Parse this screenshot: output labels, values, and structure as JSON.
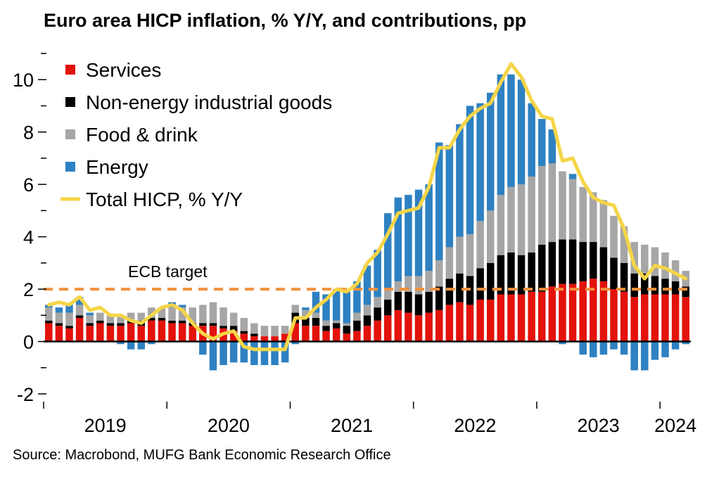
{
  "chart_data": {
    "type": "bar",
    "title": "Euro area HICP inflation, % Y/Y, and contributions, pp",
    "source": "Source: Macrobond, MUFG Bank Economic Research Office",
    "ylim": [
      -2,
      11
    ],
    "yticks": [
      -2,
      0,
      2,
      4,
      6,
      8,
      10
    ],
    "grid": false,
    "legend_position": "top-left",
    "x": [
      "2019-01",
      "2019-02",
      "2019-03",
      "2019-04",
      "2019-05",
      "2019-06",
      "2019-07",
      "2019-08",
      "2019-09",
      "2019-10",
      "2019-11",
      "2019-12",
      "2020-01",
      "2020-02",
      "2020-03",
      "2020-04",
      "2020-05",
      "2020-06",
      "2020-07",
      "2020-08",
      "2020-09",
      "2020-10",
      "2020-11",
      "2020-12",
      "2021-01",
      "2021-02",
      "2021-03",
      "2021-04",
      "2021-05",
      "2021-06",
      "2021-07",
      "2021-08",
      "2021-09",
      "2021-10",
      "2021-11",
      "2021-12",
      "2022-01",
      "2022-02",
      "2022-03",
      "2022-04",
      "2022-05",
      "2022-06",
      "2022-07",
      "2022-08",
      "2022-09",
      "2022-10",
      "2022-11",
      "2022-12",
      "2023-01",
      "2023-02",
      "2023-03",
      "2023-04",
      "2023-05",
      "2023-06",
      "2023-07",
      "2023-08",
      "2023-09",
      "2023-10",
      "2023-11",
      "2023-12",
      "2024-01",
      "2024-02",
      "2024-03"
    ],
    "xtick_labels": [
      "2019",
      "2020",
      "2021",
      "2022",
      "2023",
      "2024"
    ],
    "series": [
      {
        "name": "Services",
        "type": "bar",
        "color": "#e3120b",
        "values": [
          0.7,
          0.6,
          0.5,
          0.9,
          0.6,
          0.7,
          0.6,
          0.6,
          0.7,
          0.6,
          0.8,
          0.8,
          0.7,
          0.7,
          0.6,
          0.6,
          0.6,
          0.5,
          0.4,
          0.3,
          0.2,
          0.2,
          0.2,
          0.3,
          0.7,
          0.6,
          0.6,
          0.4,
          0.5,
          0.3,
          0.4,
          0.6,
          0.8,
          1.0,
          1.2,
          1.1,
          1.0,
          1.1,
          1.2,
          1.4,
          1.5,
          1.4,
          1.6,
          1.6,
          1.8,
          1.8,
          1.8,
          1.9,
          1.9,
          2.1,
          2.2,
          2.2,
          2.3,
          2.4,
          2.3,
          2.0,
          1.9,
          1.7,
          1.8,
          1.8,
          1.8,
          1.8,
          1.7
        ]
      },
      {
        "name": "Non-energy industrial goods",
        "type": "bar",
        "color": "#000000",
        "values": [
          0.1,
          0.1,
          0.1,
          0.1,
          0.1,
          0.1,
          0.1,
          0.1,
          0.1,
          0.2,
          0.1,
          0.1,
          0.1,
          0.1,
          0.1,
          0.1,
          0.1,
          0.1,
          0.2,
          0.1,
          0.1,
          0.0,
          0.0,
          0.0,
          0.4,
          0.3,
          0.3,
          0.2,
          0.2,
          0.3,
          0.4,
          0.4,
          0.5,
          0.6,
          0.7,
          0.8,
          0.8,
          0.8,
          0.9,
          1.0,
          1.1,
          1.1,
          1.2,
          1.4,
          1.5,
          1.6,
          1.5,
          1.5,
          1.8,
          1.7,
          1.7,
          1.7,
          1.5,
          1.4,
          1.3,
          1.2,
          1.1,
          0.9,
          0.8,
          0.7,
          0.6,
          0.5,
          0.4
        ]
      },
      {
        "name": "Food & drink",
        "type": "bar",
        "color": "#a6a6a6",
        "values": [
          0.5,
          0.4,
          0.5,
          0.4,
          0.3,
          0.3,
          0.3,
          0.3,
          0.3,
          0.3,
          0.4,
          0.4,
          0.5,
          0.5,
          0.6,
          0.7,
          0.8,
          0.7,
          0.5,
          0.5,
          0.4,
          0.4,
          0.4,
          0.3,
          0.3,
          0.3,
          0.2,
          0.2,
          0.1,
          0.1,
          0.3,
          0.4,
          0.4,
          0.4,
          0.4,
          0.6,
          0.7,
          0.8,
          1.0,
          1.2,
          1.4,
          1.6,
          1.8,
          2.0,
          2.3,
          2.5,
          2.7,
          2.9,
          3.0,
          3.0,
          2.6,
          2.3,
          2.1,
          1.9,
          1.8,
          1.6,
          1.4,
          1.2,
          1.1,
          1.1,
          1.0,
          0.8,
          0.6
        ]
      },
      {
        "name": "Energy",
        "type": "bar",
        "color": "#2e81c2",
        "values": [
          0.1,
          0.2,
          0.3,
          0.3,
          0.1,
          0.0,
          0.0,
          -0.1,
          -0.3,
          -0.3,
          -0.1,
          0.0,
          0.2,
          0.1,
          0.0,
          -0.5,
          -1.1,
          -0.9,
          -0.8,
          -0.8,
          -0.9,
          -0.9,
          -0.9,
          -0.8,
          -0.1,
          0.1,
          0.8,
          1.0,
          1.2,
          1.2,
          1.2,
          1.5,
          1.8,
          2.9,
          3.2,
          3.1,
          3.3,
          3.3,
          4.5,
          3.9,
          4.3,
          4.9,
          4.5,
          4.5,
          4.6,
          4.3,
          4.0,
          2.8,
          1.8,
          1.3,
          -0.1,
          0.2,
          -0.5,
          -0.6,
          -0.5,
          -0.3,
          -0.5,
          -1.1,
          -1.1,
          -0.7,
          -0.6,
          -0.3,
          -0.1
        ]
      },
      {
        "name": "Total HICP, % Y/Y",
        "type": "line",
        "color": "#f5d547",
        "values": [
          1.4,
          1.5,
          1.4,
          1.7,
          1.2,
          1.3,
          1.0,
          1.0,
          0.8,
          0.7,
          1.0,
          1.3,
          1.4,
          1.2,
          0.7,
          0.3,
          0.1,
          0.3,
          0.4,
          -0.2,
          -0.3,
          -0.3,
          -0.3,
          -0.3,
          0.9,
          0.9,
          1.3,
          1.6,
          2.0,
          1.9,
          2.2,
          3.0,
          3.4,
          4.1,
          4.9,
          5.0,
          5.1,
          5.9,
          7.4,
          7.4,
          8.1,
          8.6,
          8.9,
          9.1,
          9.9,
          10.6,
          10.1,
          9.2,
          8.6,
          8.5,
          6.9,
          7.0,
          6.1,
          5.5,
          5.3,
          5.2,
          4.3,
          2.9,
          2.4,
          2.9,
          2.8,
          2.6,
          2.4
        ]
      }
    ],
    "reference_line": {
      "label": "ECB target",
      "value": 2,
      "color": "#f2913d"
    }
  }
}
